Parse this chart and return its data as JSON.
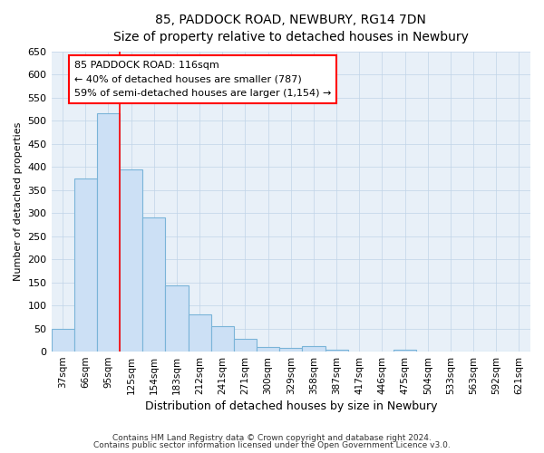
{
  "title_line1": "85, PADDOCK ROAD, NEWBURY, RG14 7DN",
  "title_line2": "Size of property relative to detached houses in Newbury",
  "xlabel": "Distribution of detached houses by size in Newbury",
  "ylabel": "Number of detached properties",
  "footnote1": "Contains HM Land Registry data © Crown copyright and database right 2024.",
  "footnote2": "Contains public sector information licensed under the Open Government Licence v3.0.",
  "categories": [
    "37sqm",
    "66sqm",
    "95sqm",
    "125sqm",
    "154sqm",
    "183sqm",
    "212sqm",
    "241sqm",
    "271sqm",
    "300sqm",
    "329sqm",
    "358sqm",
    "387sqm",
    "417sqm",
    "446sqm",
    "475sqm",
    "504sqm",
    "533sqm",
    "563sqm",
    "592sqm",
    "621sqm"
  ],
  "values": [
    50,
    375,
    515,
    395,
    290,
    143,
    80,
    55,
    28,
    10,
    7,
    12,
    5,
    1,
    1,
    5,
    1,
    1,
    1,
    1,
    1
  ],
  "bar_color": "#cce0f5",
  "bar_edge_color": "#7ab4d8",
  "grid_color": "#c0d4e8",
  "background_color": "#e8f0f8",
  "annotation_text1": "85 PADDOCK ROAD: 116sqm",
  "annotation_text2": "← 40% of detached houses are smaller (787)",
  "annotation_text3": "59% of semi-detached houses are larger (1,154) →",
  "ylim": [
    0,
    650
  ],
  "yticks": [
    0,
    50,
    100,
    150,
    200,
    250,
    300,
    350,
    400,
    450,
    500,
    550,
    600,
    650
  ],
  "red_line_index": 3
}
